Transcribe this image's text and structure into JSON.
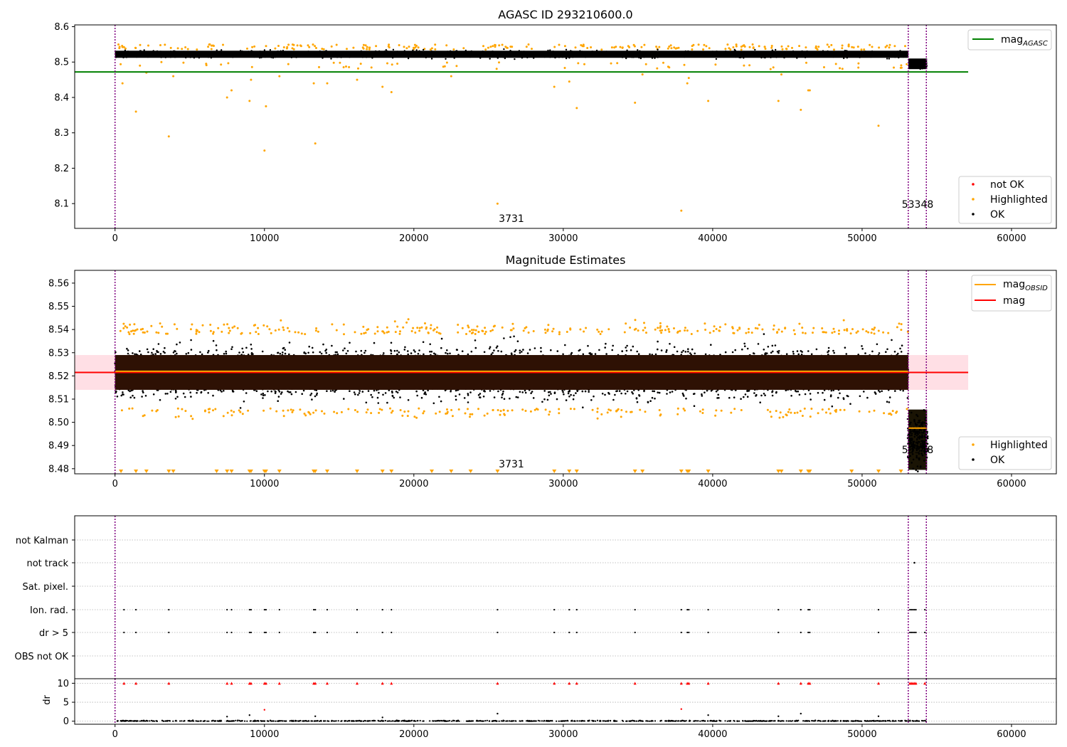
{
  "colors": {
    "ok": "#000000",
    "highlighted": "#ffa500",
    "not_ok": "#ff0000",
    "mag_agasc": "#008000",
    "mag": "#ff0000",
    "mag_obsid": "#ffa500",
    "band": "#ffc0cb",
    "boundary": "#800080",
    "grid": "#b0b0b0"
  },
  "chart_data": [
    {
      "id": "agasc",
      "type": "scatter",
      "title": "AGASC ID 293210600.0",
      "xlim": [
        -2700,
        63000
      ],
      "ylim": [
        8.03,
        8.605
      ],
      "xticks": [
        0,
        10000,
        20000,
        30000,
        40000,
        50000,
        60000
      ],
      "yticks": [
        8.1,
        8.2,
        8.3,
        8.4,
        8.5,
        8.6
      ],
      "vlines": [
        0,
        53090,
        54300
      ],
      "hline": {
        "y": 8.472,
        "x_end": 57100,
        "series": "mag_AGASC"
      },
      "band": {
        "x": [
          0,
          53100
        ],
        "y": [
          8.505,
          8.54
        ],
        "note": "dense OK points"
      },
      "late_band": {
        "x": [
          53100,
          54350
        ],
        "y": [
          8.48,
          8.51
        ]
      },
      "outliers_highlighted": [
        [
          500,
          8.44
        ],
        [
          1400,
          8.36
        ],
        [
          2100,
          8.47
        ],
        [
          3600,
          8.29
        ],
        [
          3900,
          8.46
        ],
        [
          7500,
          8.4
        ],
        [
          7800,
          8.42
        ],
        [
          9000,
          8.39
        ],
        [
          9100,
          8.45
        ],
        [
          10000,
          8.25
        ],
        [
          10100,
          8.375
        ],
        [
          11000,
          8.46
        ],
        [
          13300,
          8.44
        ],
        [
          13400,
          8.27
        ],
        [
          14200,
          8.44
        ],
        [
          16200,
          8.45
        ],
        [
          17900,
          8.43
        ],
        [
          18500,
          8.415
        ],
        [
          22500,
          8.46
        ],
        [
          25600,
          8.1
        ],
        [
          29400,
          8.43
        ],
        [
          30400,
          8.445
        ],
        [
          30900,
          8.37
        ],
        [
          34800,
          8.385
        ],
        [
          35300,
          8.465
        ],
        [
          37900,
          8.08
        ],
        [
          38300,
          8.44
        ],
        [
          38400,
          8.455
        ],
        [
          39700,
          8.39
        ],
        [
          44400,
          8.39
        ],
        [
          44600,
          8.465
        ],
        [
          45900,
          8.365
        ],
        [
          46400,
          8.42
        ],
        [
          46500,
          8.42
        ],
        [
          51100,
          8.32
        ]
      ],
      "annotations": [
        {
          "text": "3731",
          "x": 25700,
          "y": 8.047
        },
        {
          "text": "53348",
          "x": 53000,
          "y": 8.088
        }
      ],
      "legends": [
        {
          "position": "upper-right",
          "entries": [
            {
              "label": "mag",
              "sub": "AGASC",
              "kind": "line",
              "color": "mag_agasc"
            }
          ]
        },
        {
          "position": "lower-right",
          "entries": [
            {
              "label": "not OK",
              "kind": "dot",
              "color": "not_ok"
            },
            {
              "label": "Highlighted",
              "kind": "dot",
              "color": "highlighted"
            },
            {
              "label": "OK",
              "kind": "dot",
              "color": "ok"
            }
          ]
        }
      ]
    },
    {
      "id": "estimates",
      "type": "scatter",
      "title": "Magnitude Estimates",
      "xlim": [
        -2700,
        63000
      ],
      "ylim": [
        8.4778,
        8.5655
      ],
      "xticks": [
        0,
        10000,
        20000,
        30000,
        40000,
        50000,
        60000
      ],
      "yticks": [
        8.48,
        8.49,
        8.5,
        8.51,
        8.52,
        8.53,
        8.54,
        8.55,
        8.56
      ],
      "vlines": [
        0,
        53090,
        54300
      ],
      "mag_line": {
        "y": 8.5215,
        "x_end": 57100
      },
      "mag_band": {
        "y": [
          8.514,
          8.529
        ],
        "x_end": 57100
      },
      "mag_obsid": [
        {
          "x": [
            0,
            53100
          ],
          "y": 8.522
        },
        {
          "x": [
            53100,
            54350
          ],
          "y": 8.4975
        }
      ],
      "dense_band": {
        "x": [
          0,
          53100
        ],
        "y": [
          8.514,
          8.529
        ]
      },
      "late_band": {
        "x": [
          53100,
          54350
        ],
        "y": [
          8.4795,
          8.5055
        ]
      },
      "off_scale_markers": [
        400,
        1400,
        2100,
        3600,
        3900,
        6800,
        7500,
        7800,
        9000,
        9100,
        10000,
        10100,
        11000,
        13300,
        13400,
        14200,
        16200,
        17900,
        18500,
        21200,
        22500,
        23800,
        25600,
        29400,
        30400,
        30900,
        34800,
        35300,
        37900,
        38300,
        38400,
        39700,
        44400,
        44600,
        45900,
        46400,
        46500,
        49300,
        51100,
        52600
      ],
      "annotations": [
        {
          "text": "3731",
          "x": 25700,
          "y": 8.4809
        },
        {
          "text": "53348",
          "x": 52900,
          "y": 8.4871
        }
      ],
      "legends": [
        {
          "position": "upper-right",
          "entries": [
            {
              "label": "mag",
              "sub": "OBSID",
              "kind": "line",
              "color": "mag_obsid"
            },
            {
              "label": "mag",
              "kind": "line",
              "color": "mag"
            }
          ]
        },
        {
          "position": "lower-right",
          "entries": [
            {
              "label": "Highlighted",
              "kind": "dot",
              "color": "highlighted"
            },
            {
              "label": "OK",
              "kind": "dot",
              "color": "ok"
            }
          ]
        }
      ]
    },
    {
      "id": "flags",
      "type": "scatter",
      "xlim": [
        -2700,
        63000
      ],
      "categories": [
        "not Kalman",
        "not track",
        "Sat. pixel.",
        "Ion. rad.",
        "dr > 5",
        "OBS not OK"
      ],
      "grid": true,
      "vlines": [
        0,
        53090,
        54300
      ],
      "flag_x": [
        600,
        1400,
        3600,
        7500,
        7800,
        9000,
        9100,
        10000,
        10100,
        11000,
        13300,
        13400,
        14200,
        16200,
        17900,
        18500,
        25600,
        29400,
        30400,
        30900,
        34800,
        37900,
        38300,
        38400,
        39700,
        44400,
        45900,
        46400,
        46500,
        51100,
        53200,
        53300,
        53400,
        53500,
        53600,
        54200
      ],
      "not_track_x": [
        53500
      ]
    },
    {
      "id": "dr",
      "type": "scatter",
      "ylabel": "dr",
      "xlim": [
        -2700,
        63000
      ],
      "ylim": [
        -0.8,
        11.2
      ],
      "xticks": [
        0,
        10000,
        20000,
        30000,
        40000,
        50000,
        60000
      ],
      "yticks": [
        0,
        5,
        10
      ],
      "grid": true,
      "vlines": [
        0,
        53090,
        54300
      ],
      "clipped_x": [
        600,
        1400,
        3600,
        7500,
        7800,
        9000,
        9100,
        10000,
        10100,
        11000,
        13300,
        13400,
        14200,
        16200,
        17900,
        18500,
        25600,
        29400,
        30400,
        30900,
        34800,
        37900,
        38300,
        38400,
        39700,
        44400,
        45900,
        46400,
        46500,
        51100,
        53200,
        53300,
        53400,
        53500,
        53600,
        54200
      ],
      "highlighted_points": [
        [
          10000,
          3.0
        ],
        [
          37900,
          3.2
        ]
      ],
      "notable_points": [
        [
          7500,
          1.2
        ],
        [
          9000,
          1.6
        ],
        [
          13400,
          1.3
        ],
        [
          17900,
          1.0
        ],
        [
          25600,
          2.0
        ],
        [
          39700,
          1.6
        ],
        [
          44400,
          1.3
        ],
        [
          45900,
          2.0
        ],
        [
          51100,
          1.3
        ]
      ]
    }
  ]
}
